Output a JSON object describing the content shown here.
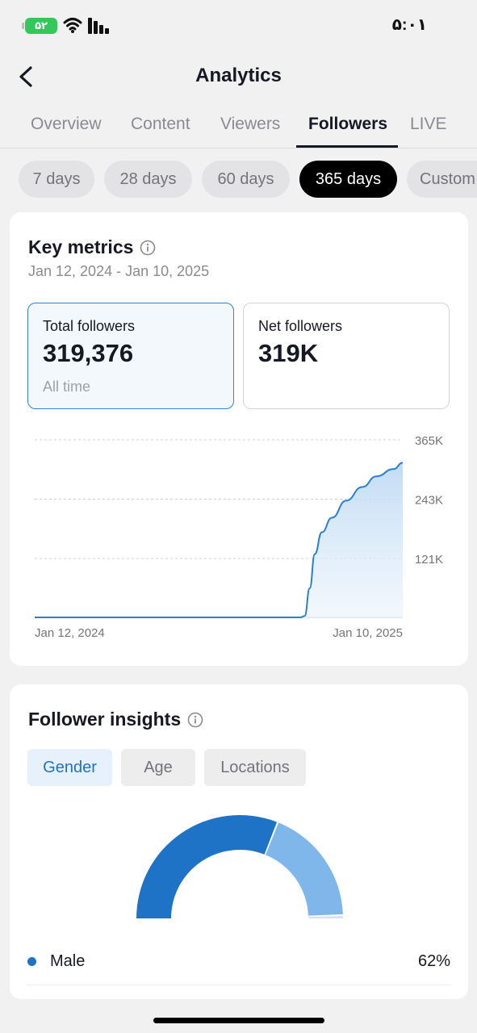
{
  "status_bar": {
    "battery": "۵۲",
    "time": "۵:۰۱"
  },
  "header": {
    "title": "Analytics",
    "back_icon": "chevron-left-icon"
  },
  "tabs": [
    {
      "label": "Overview",
      "active": false
    },
    {
      "label": "Content",
      "active": false
    },
    {
      "label": "Viewers",
      "active": false
    },
    {
      "label": "Followers",
      "active": true
    },
    {
      "label": "LIVE",
      "active": false
    }
  ],
  "ranges": [
    {
      "label": "7 days",
      "active": false
    },
    {
      "label": "28 days",
      "active": false
    },
    {
      "label": "60 days",
      "active": false
    },
    {
      "label": "365 days",
      "active": true
    },
    {
      "label": "Custom",
      "active": false
    }
  ],
  "key_metrics": {
    "title": "Key metrics",
    "date_range": "Jan 12, 2024 - Jan 10, 2025",
    "total": {
      "label": "Total followers",
      "value": "319,376",
      "sub": "All time"
    },
    "net": {
      "label": "Net followers",
      "value": "319K"
    }
  },
  "chart_data": {
    "type": "area",
    "x_labels": [
      "Jan 12, 2024",
      "Jan 10, 2025"
    ],
    "y_ticks": [
      "365K",
      "243K",
      "121K"
    ],
    "ylim": [
      0,
      365000
    ],
    "grid": true,
    "points": [
      [
        "2024-01-12",
        0
      ],
      [
        "2024-10-01",
        0
      ],
      [
        "2024-10-05",
        3000
      ],
      [
        "2024-10-10",
        60000
      ],
      [
        "2024-10-15",
        130000
      ],
      [
        "2024-10-22",
        175000
      ],
      [
        "2024-11-01",
        205000
      ],
      [
        "2024-11-15",
        240000
      ],
      [
        "2024-12-01",
        268000
      ],
      [
        "2024-12-15",
        290000
      ],
      [
        "2025-01-01",
        305000
      ],
      [
        "2025-01-10",
        318000
      ]
    ]
  },
  "insights": {
    "title": "Follower insights",
    "filters": [
      {
        "label": "Gender",
        "active": true
      },
      {
        "label": "Age",
        "active": false
      },
      {
        "label": "Locations",
        "active": false
      }
    ],
    "gender": [
      {
        "label": "Male",
        "pct": "62%",
        "value": 62,
        "color": "#1f73c6"
      },
      {
        "value": 37,
        "color": "#7fb7ea"
      },
      {
        "value": 1,
        "color": "#cfe3f6"
      }
    ]
  },
  "colors": {
    "accent": "#1f73c6",
    "line": "#2b7fcf"
  }
}
